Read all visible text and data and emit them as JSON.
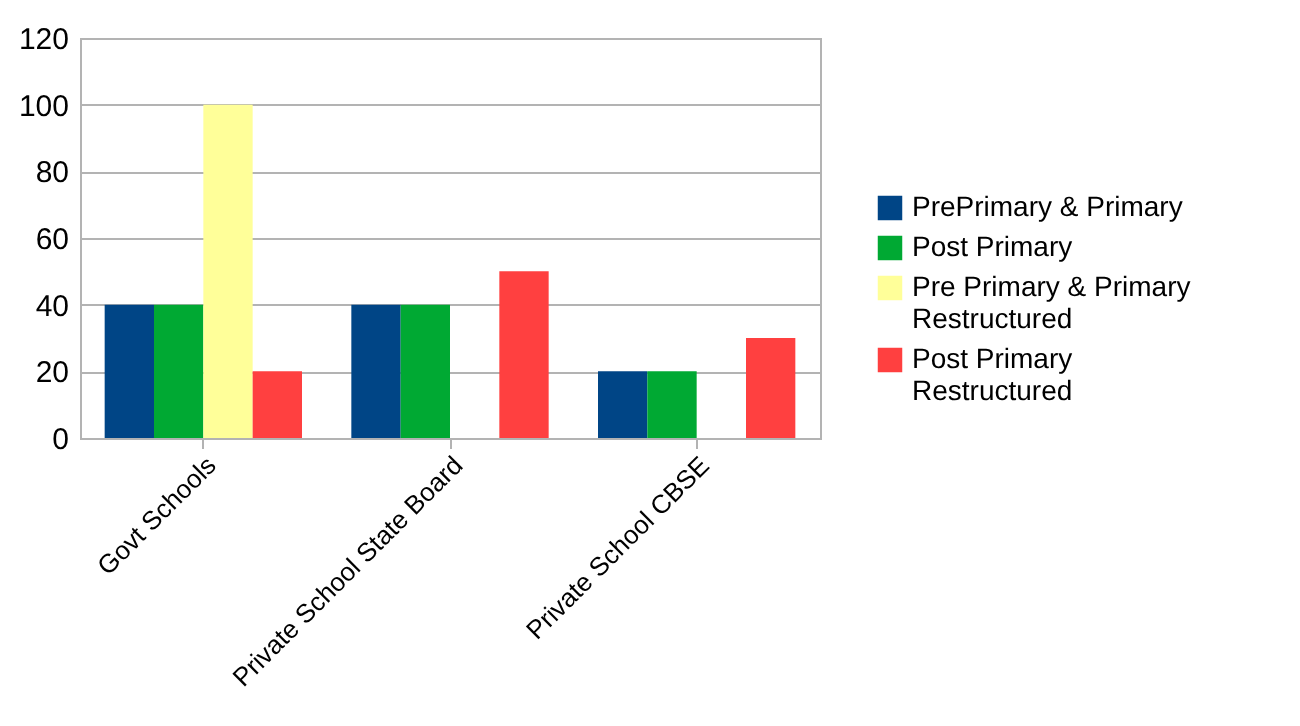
{
  "chart_data": {
    "type": "bar",
    "categories": [
      "Govt Schools",
      "Private School State Board",
      "Private School CBSE"
    ],
    "series": [
      {
        "name": "PrePrimary & Primary",
        "color": "#004586",
        "values": [
          40,
          40,
          20
        ]
      },
      {
        "name": "Post Primary",
        "color": "#00a933",
        "values": [
          40,
          40,
          20
        ]
      },
      {
        "name": "Pre Primary & Primary Restructured",
        "color": "#ffff99",
        "values": [
          100,
          0,
          0
        ]
      },
      {
        "name": "Post Primary Restructured",
        "color": "#ff4040",
        "values": [
          20,
          50,
          30
        ]
      }
    ],
    "ylim": [
      0,
      120
    ],
    "yticks": [
      0,
      20,
      40,
      60,
      80,
      100,
      120
    ],
    "grid": "y",
    "legend": "right"
  }
}
